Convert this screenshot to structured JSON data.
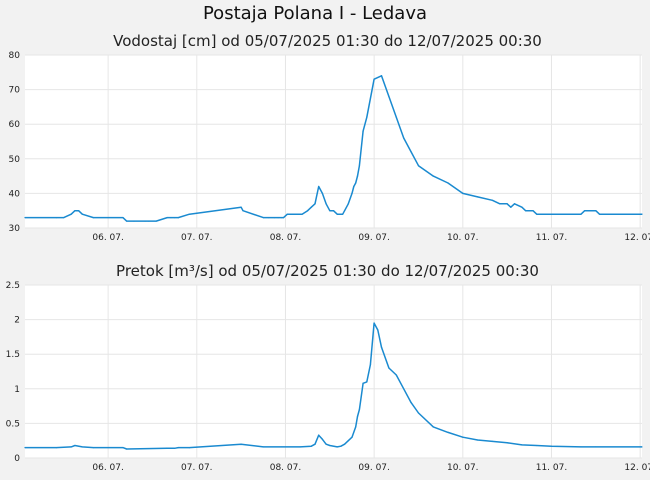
{
  "title": "Postaja Polana I - Ledava",
  "chart_data": [
    {
      "type": "line",
      "title": "Vodostaj [cm] od 05/07/2025 01:30 do 12/07/2025 00:30",
      "xlabel": "",
      "ylabel": "",
      "ylim": [
        30,
        80
      ],
      "yticks": [
        30,
        40,
        50,
        60,
        70,
        80
      ],
      "ytick_labels": [
        "30",
        "40",
        "50",
        "60",
        "70",
        "80"
      ],
      "xlim": [
        "2025-07-05T01:30",
        "2025-07-12T00:30"
      ],
      "xticks": [
        "2025-07-06T00:00",
        "2025-07-07T00:00",
        "2025-07-08T00:00",
        "2025-07-09T00:00",
        "2025-07-10T00:00",
        "2025-07-11T00:00",
        "2025-07-12T00:00"
      ],
      "xtick_labels": [
        "06. 07.",
        "07. 07.",
        "08. 07.",
        "09. 07.",
        "10. 07.",
        "11. 07.",
        "12. 07."
      ],
      "grid": true,
      "color": "#1a8ad0",
      "series": [
        {
          "x": [
            "2025-07-05T01:30",
            "2025-07-05T10:00",
            "2025-07-05T12:00",
            "2025-07-05T14:00",
            "2025-07-05T15:00",
            "2025-07-05T16:00",
            "2025-07-05T17:00",
            "2025-07-05T20:00",
            "2025-07-06T04:00",
            "2025-07-06T05:00",
            "2025-07-06T07:00",
            "2025-07-06T10:00",
            "2025-07-06T11:00",
            "2025-07-06T13:00",
            "2025-07-06T16:00",
            "2025-07-06T17:00",
            "2025-07-06T18:00",
            "2025-07-06T19:00",
            "2025-07-06T22:00",
            "2025-07-07T12:00",
            "2025-07-07T12:30",
            "2025-07-07T18:00",
            "2025-07-07T19:30",
            "2025-07-07T21:00",
            "2025-07-07T22:00",
            "2025-07-07T23:00",
            "2025-07-07T23:30",
            "2025-07-08T00:30",
            "2025-07-08T01:30",
            "2025-07-08T03:00",
            "2025-07-08T04:30",
            "2025-07-08T06:00",
            "2025-07-08T07:00",
            "2025-07-08T08:00",
            "2025-07-08T09:00",
            "2025-07-08T10:00",
            "2025-07-08T11:00",
            "2025-07-08T12:00",
            "2025-07-08T13:00",
            "2025-07-08T14:00",
            "2025-07-08T15:00",
            "2025-07-08T15:30",
            "2025-07-08T16:00",
            "2025-07-08T17:00",
            "2025-07-08T18:00",
            "2025-07-08T18:30",
            "2025-07-08T19:00",
            "2025-07-08T19:30",
            "2025-07-08T20:00",
            "2025-07-08T21:00",
            "2025-07-08T22:00",
            "2025-07-09T00:00",
            "2025-07-09T02:00",
            "2025-07-09T04:00",
            "2025-07-09T06:00",
            "2025-07-09T08:00",
            "2025-07-09T10:00",
            "2025-07-09T12:00",
            "2025-07-09T16:00",
            "2025-07-09T20:00",
            "2025-07-10T00:00",
            "2025-07-10T04:00",
            "2025-07-10T08:00",
            "2025-07-10T10:00",
            "2025-07-10T12:00",
            "2025-07-10T13:00",
            "2025-07-10T14:00",
            "2025-07-10T16:00",
            "2025-07-10T17:00",
            "2025-07-10T19:00",
            "2025-07-10T20:00",
            "2025-07-11T00:00",
            "2025-07-11T08:00",
            "2025-07-11T09:00",
            "2025-07-11T12:00",
            "2025-07-11T13:00",
            "2025-07-12T00:30"
          ],
          "values": [
            33,
            33,
            33,
            34,
            35,
            35,
            34,
            33,
            33,
            32,
            32,
            32,
            32,
            32,
            33,
            33,
            33,
            33,
            34,
            36,
            35,
            33,
            33,
            33,
            33,
            33,
            33,
            34,
            34,
            34,
            34,
            35,
            36,
            37,
            42,
            40,
            37,
            35,
            35,
            34,
            34,
            34,
            35,
            37,
            40,
            42,
            43,
            45,
            48,
            58,
            62,
            73,
            74,
            68,
            62,
            56,
            52,
            48,
            45,
            43,
            40,
            39,
            38,
            37,
            37,
            36,
            37,
            36,
            35,
            35,
            34,
            34,
            34,
            35,
            35,
            34,
            34
          ]
        }
      ]
    },
    {
      "type": "line",
      "title": "Pretok [m³/s] od 05/07/2025 01:30 do 12/07/2025 00:30",
      "xlabel": "",
      "ylabel": "",
      "ylim": [
        0,
        2.5
      ],
      "yticks": [
        0,
        0.5,
        1,
        1.5,
        2,
        2.5
      ],
      "ytick_labels": [
        "0",
        "0.5",
        "1",
        "1.5",
        "2",
        "2.5"
      ],
      "xlim": [
        "2025-07-05T01:30",
        "2025-07-12T00:30"
      ],
      "xticks": [
        "2025-07-06T00:00",
        "2025-07-07T00:00",
        "2025-07-08T00:00",
        "2025-07-09T00:00",
        "2025-07-10T00:00",
        "2025-07-11T00:00",
        "2025-07-12T00:00"
      ],
      "xtick_labels": [
        "06. 07.",
        "07. 07.",
        "08. 07.",
        "09. 07.",
        "10. 07.",
        "11. 07.",
        "12. 07."
      ],
      "grid": true,
      "color": "#1a8ad0",
      "series": [
        {
          "x": [
            "2025-07-05T01:30",
            "2025-07-05T10:00",
            "2025-07-05T14:00",
            "2025-07-05T15:00",
            "2025-07-05T17:00",
            "2025-07-05T20:00",
            "2025-07-06T04:00",
            "2025-07-06T05:00",
            "2025-07-06T16:00",
            "2025-07-06T18:00",
            "2025-07-06T19:00",
            "2025-07-06T22:00",
            "2025-07-07T12:00",
            "2025-07-07T18:00",
            "2025-07-07T23:00",
            "2025-07-08T04:00",
            "2025-07-08T07:00",
            "2025-07-08T08:00",
            "2025-07-08T09:00",
            "2025-07-08T10:00",
            "2025-07-08T11:00",
            "2025-07-08T12:00",
            "2025-07-08T14:00",
            "2025-07-08T15:00",
            "2025-07-08T16:00",
            "2025-07-08T17:00",
            "2025-07-08T18:00",
            "2025-07-08T19:00",
            "2025-07-08T19:30",
            "2025-07-08T20:00",
            "2025-07-08T21:00",
            "2025-07-08T22:00",
            "2025-07-08T23:00",
            "2025-07-09T00:00",
            "2025-07-09T01:00",
            "2025-07-09T02:00",
            "2025-07-09T04:00",
            "2025-07-09T06:00",
            "2025-07-09T08:00",
            "2025-07-09T10:00",
            "2025-07-09T12:00",
            "2025-07-09T16:00",
            "2025-07-09T20:00",
            "2025-07-10T00:00",
            "2025-07-10T04:00",
            "2025-07-10T08:00",
            "2025-07-10T12:00",
            "2025-07-10T16:00",
            "2025-07-10T20:00",
            "2025-07-11T00:00",
            "2025-07-11T08:00",
            "2025-07-11T12:00",
            "2025-07-12T00:30"
          ],
          "values": [
            0.15,
            0.15,
            0.16,
            0.18,
            0.16,
            0.15,
            0.15,
            0.13,
            0.14,
            0.14,
            0.15,
            0.15,
            0.2,
            0.16,
            0.16,
            0.16,
            0.17,
            0.2,
            0.33,
            0.27,
            0.2,
            0.18,
            0.16,
            0.17,
            0.2,
            0.25,
            0.3,
            0.45,
            0.6,
            0.7,
            1.08,
            1.1,
            1.35,
            1.95,
            1.85,
            1.6,
            1.3,
            1.2,
            1.0,
            0.8,
            0.65,
            0.45,
            0.37,
            0.3,
            0.26,
            0.24,
            0.22,
            0.19,
            0.18,
            0.17,
            0.16,
            0.16,
            0.16
          ]
        }
      ]
    }
  ]
}
